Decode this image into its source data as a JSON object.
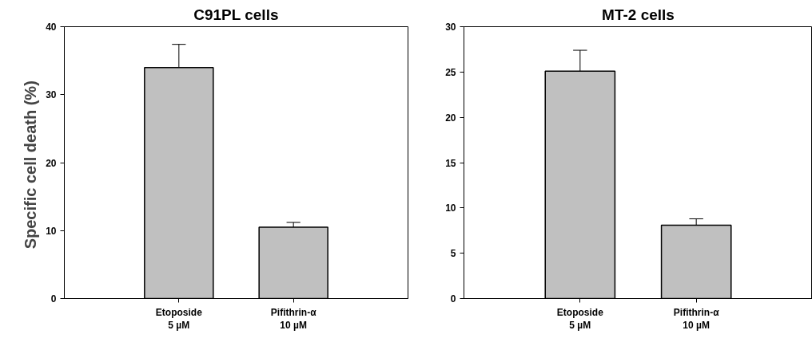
{
  "chart_data": [
    {
      "type": "bar",
      "title": "C91PL cells",
      "ylabel": "Specific  cell death (%)",
      "categories": [
        "Etoposide\n5 µM",
        "Pifithrin-α\n10 µM"
      ],
      "values": [
        34.0,
        10.5
      ],
      "errors": [
        [
          34.0,
          37.4
        ],
        [
          10.5,
          11.2
        ]
      ],
      "color": "#c0c0c0",
      "ylim": [
        0,
        40
      ],
      "yticks": [
        0,
        10,
        20,
        30,
        40
      ],
      "grid": false
    },
    {
      "type": "bar",
      "title": "MT-2 cells",
      "categories": [
        "Etoposide\n5 µM",
        "Pifithrin-α\n10 µM"
      ],
      "values": [
        25.1,
        8.1
      ],
      "errors": [
        [
          25.1,
          27.4
        ],
        [
          8.1,
          8.8
        ]
      ],
      "color": "#c0c0c0",
      "ylim": [
        0,
        30
      ],
      "yticks": [
        0,
        5,
        10,
        15,
        20,
        25,
        30
      ],
      "grid": false
    }
  ]
}
